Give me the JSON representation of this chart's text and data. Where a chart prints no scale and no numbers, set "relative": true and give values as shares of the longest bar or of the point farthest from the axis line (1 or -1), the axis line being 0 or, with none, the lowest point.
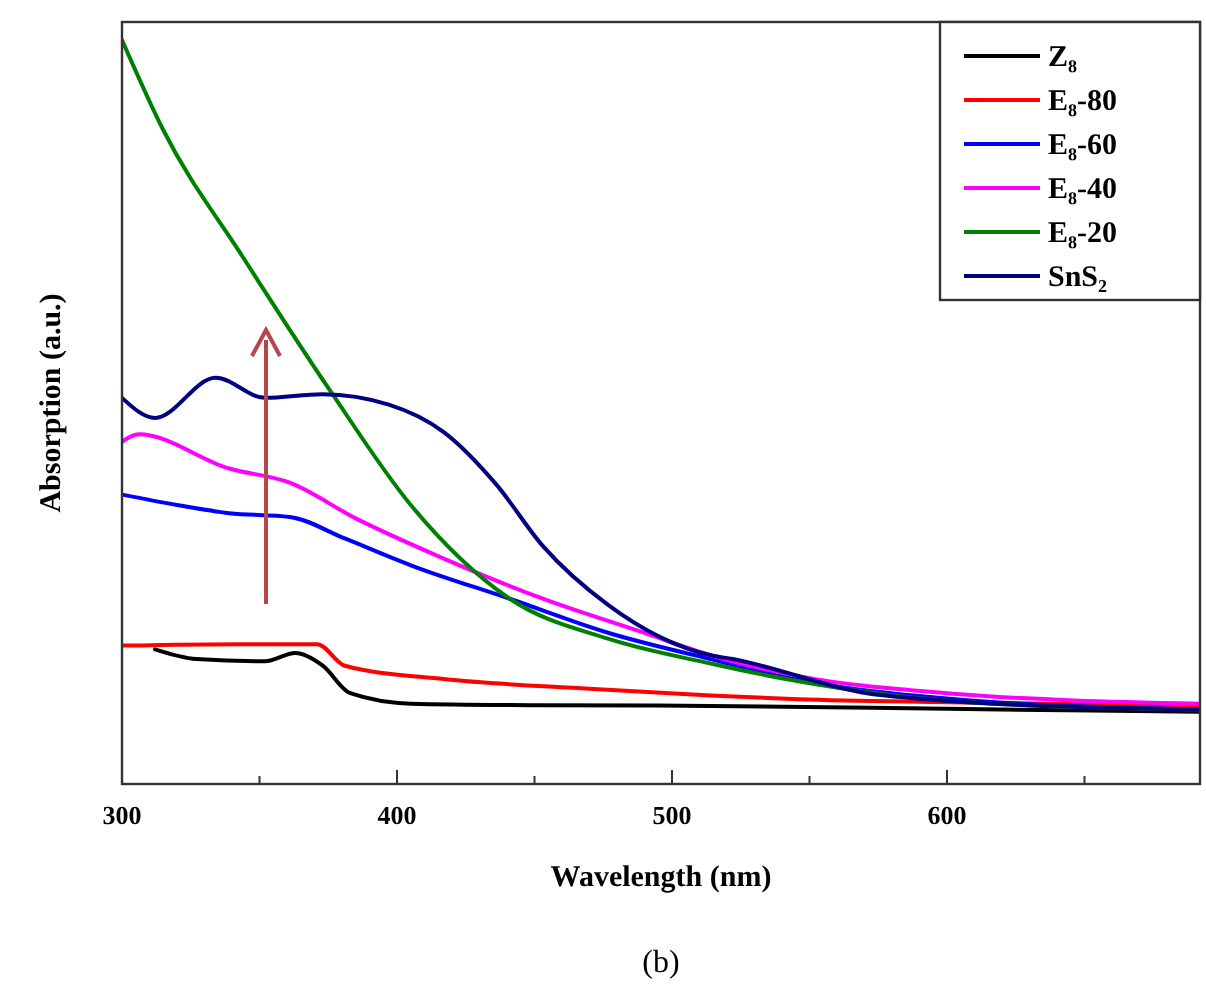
{
  "chart_data": {
    "type": "line",
    "xlabel": "Wavelength (nm)",
    "ylabel": "Absorption (a.u.)",
    "relative": true,
    "legend": "top right",
    "xlim": [
      300,
      692
    ],
    "xticks": [
      300,
      {
        "value": 350,
        "label": null
      },
      400,
      {
        "value": 450,
        "label": null
      },
      500,
      {
        "value": 550,
        "label": null
      },
      600,
      {
        "value": 650,
        "label": null
      }
    ],
    "annotations": [
      "(b)"
    ],
    "series": [
      {
        "name": "Z₈",
        "color": "#000000",
        "x": [
          312,
          327,
          352,
          363,
          373,
          383,
          405,
          450,
          514,
          600,
          692
        ],
        "values": [
          0.181,
          0.168,
          0.165,
          0.176,
          0.159,
          0.122,
          0.108,
          0.106,
          0.105,
          0.101,
          0.097
        ]
      },
      {
        "name": "E₈-80",
        "color": "#ff0000",
        "x": [
          300,
          344,
          371,
          381,
          417,
          470,
          514,
          546,
          600,
          692
        ],
        "values": [
          0.186,
          0.188,
          0.188,
          0.159,
          0.141,
          0.128,
          0.119,
          0.114,
          0.11,
          0.105
        ]
      },
      {
        "name": "E₈-60",
        "color": "#0000ff",
        "x": [
          300,
          320,
          339,
          361,
          381,
          405,
          441,
          477,
          514,
          546,
          600,
          692
        ],
        "values": [
          0.389,
          0.375,
          0.364,
          0.359,
          0.33,
          0.294,
          0.249,
          0.203,
          0.168,
          0.14,
          0.115,
          0.1
        ]
      },
      {
        "name": "E₈-40",
        "color": "#ff00ff",
        "x": [
          300,
          306,
          339,
          361,
          385,
          417,
          453,
          490,
          514,
          546,
          600,
          692
        ],
        "values": [
          0.46,
          0.47,
          0.424,
          0.405,
          0.357,
          0.303,
          0.249,
          0.203,
          0.173,
          0.145,
          0.122,
          0.108
        ]
      },
      {
        "name": "E₈-20",
        "color": "#008000",
        "x": [
          300,
          315,
          344,
          376,
          405,
          441,
          477,
          514,
          546,
          600,
          692
        ],
        "values": [
          1.0,
          0.879,
          0.708,
          0.527,
          0.375,
          0.249,
          0.195,
          0.162,
          0.138,
          0.112,
          0.1
        ]
      },
      {
        "name": "SnS₂",
        "color": "#000080",
        "x": [
          300,
          312,
          334,
          352,
          373,
          397,
          417,
          436,
          453,
          477,
          514,
          522,
          571,
          600,
          692
        ],
        "values": [
          0.519,
          0.492,
          0.546,
          0.519,
          0.524,
          0.51,
          0.473,
          0.403,
          0.32,
          0.24,
          0.173,
          0.168,
          0.122,
          0.112,
          0.1
        ]
      }
    ]
  }
}
